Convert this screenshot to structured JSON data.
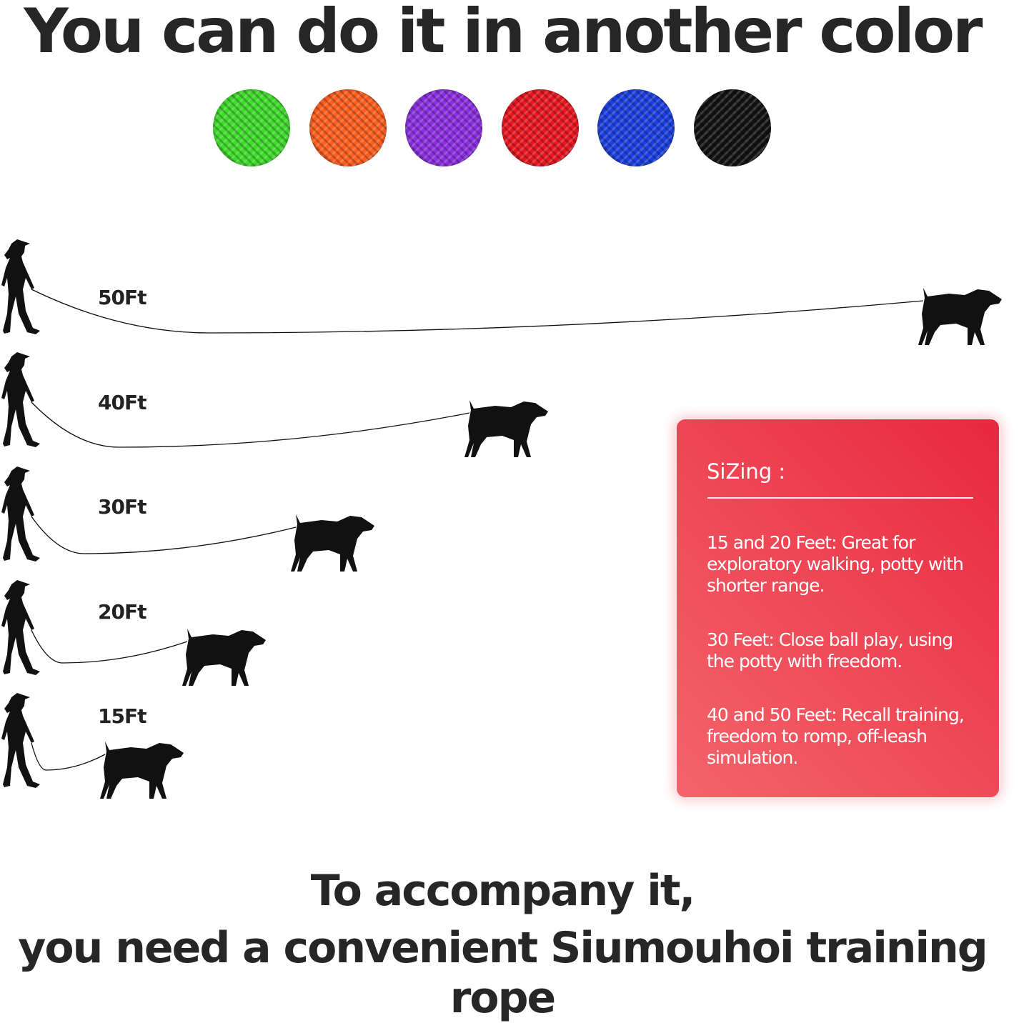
{
  "title": "You can do it in another color",
  "swatches": [
    {
      "name": "green",
      "color": "#3fdc2c"
    },
    {
      "name": "orange",
      "color": "#ff5e1e"
    },
    {
      "name": "purple",
      "color": "#8b2fe0"
    },
    {
      "name": "red",
      "color": "#ea1620"
    },
    {
      "name": "blue",
      "color": "#1b3fe0"
    },
    {
      "name": "black",
      "color": "#121212"
    }
  ],
  "lengths": [
    "50Ft",
    "40Ft",
    "30Ft",
    "20Ft",
    "15Ft"
  ],
  "sizing": {
    "heading": "SiZing :",
    "items": [
      "15 and 20 Feet: Great for exploratory walking, potty with shorter range.",
      "30 Feet: Close ball play, using the potty with freedom.",
      "40 and 50 Feet: Recall training, freedom to romp, off-leash simulation."
    ],
    "card_color": "#e8283f"
  },
  "tagline": {
    "line1": "To accompany it,",
    "line2": "you need a convenient Siumouhoi training rope"
  }
}
